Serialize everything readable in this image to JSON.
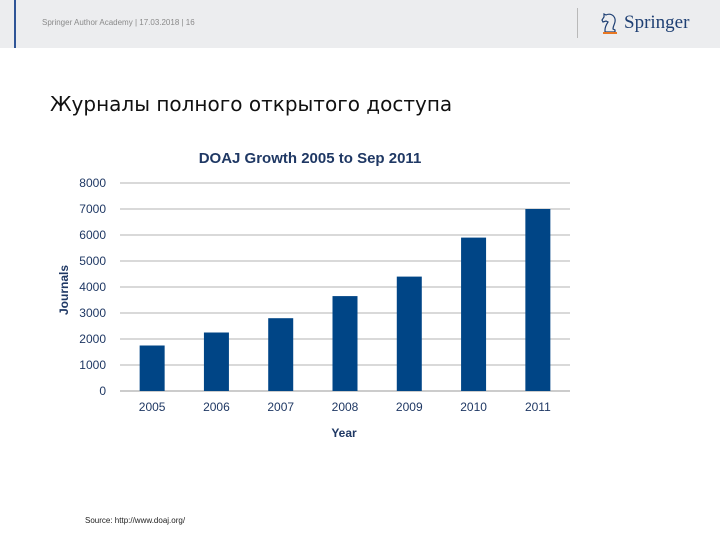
{
  "header": {
    "meta": "Springer Author Academy | 17.03.2018 | 16",
    "logo_text": "Springer",
    "logo_icon": "chess-knight-icon"
  },
  "slide": {
    "title": "Журналы полного открытого доступа",
    "source": "Source: http://www.doaj.org/"
  },
  "chart_data": {
    "type": "bar",
    "title": "DOAJ Growth 2005 to Sep 2011",
    "xlabel": "Year",
    "ylabel": "Journals",
    "categories": [
      "2005",
      "2006",
      "2007",
      "2008",
      "2009",
      "2010",
      "2011"
    ],
    "series": [
      {
        "values": [
          1750,
          2250,
          2800,
          3650,
          4400,
          5900,
          7000
        ]
      }
    ],
    "ylim": [
      0,
      8000
    ],
    "yticks": [
      0,
      1000,
      2000,
      3000,
      4000,
      5000,
      6000,
      7000,
      8000
    ],
    "grid": true,
    "colors": {
      "bar": "#004586",
      "grid": "#b3b3b3",
      "text": "#1f3864"
    }
  }
}
